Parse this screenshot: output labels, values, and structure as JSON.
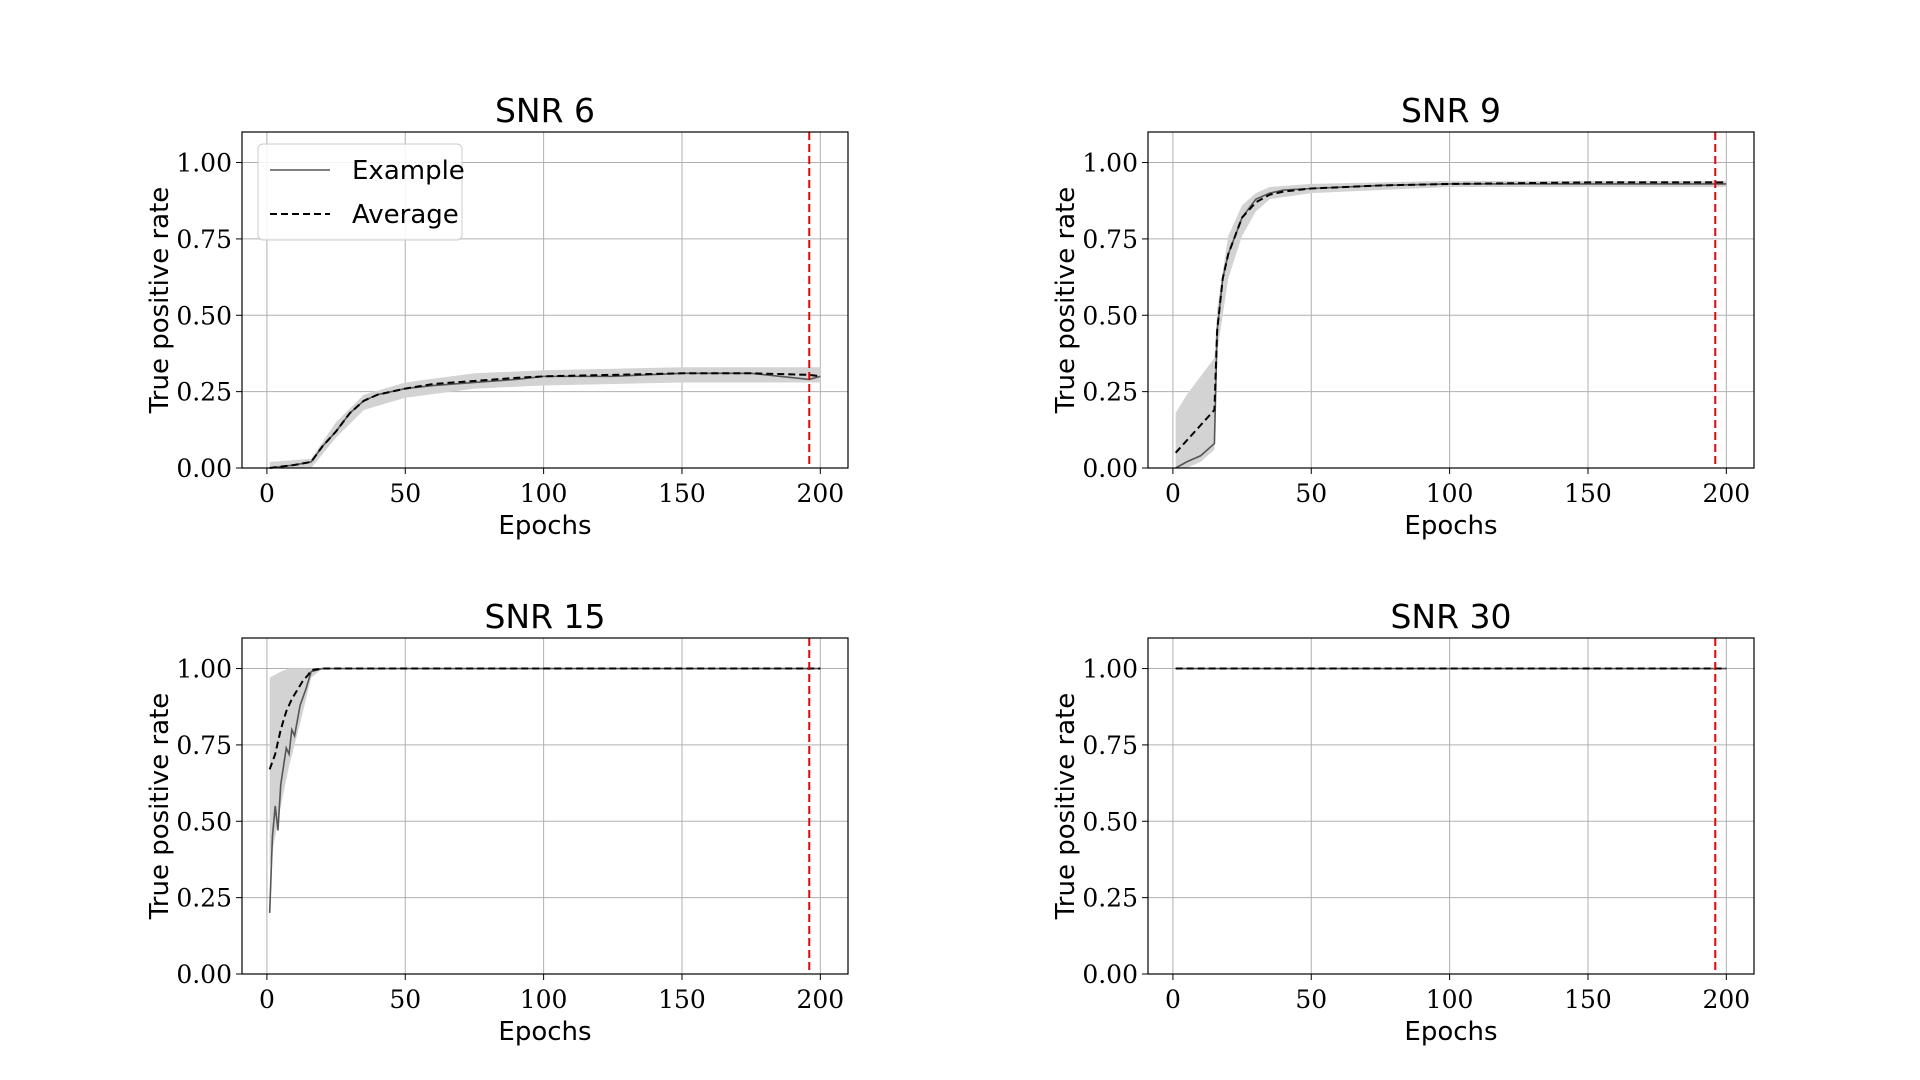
{
  "figure": {
    "legend": {
      "example_label": "Example",
      "average_label": "Average",
      "placement": "upper-left (first panel only)"
    }
  },
  "chart_data": [
    {
      "type": "line",
      "title": "SNR 6",
      "xlabel": "Epochs",
      "ylabel": "True positive rate",
      "xlim": [
        -9,
        210
      ],
      "ylim": [
        0.0,
        1.1
      ],
      "xticks": [
        0,
        50,
        100,
        150,
        200
      ],
      "xtick_labels": [
        "0",
        "50",
        "100",
        "150",
        "200"
      ],
      "yticks": [
        0.0,
        0.25,
        0.5,
        0.75,
        1.0
      ],
      "ytick_labels": [
        "0.00",
        "0.25",
        "0.50",
        "0.75",
        "1.00"
      ],
      "grid": true,
      "vline_x": 196,
      "series": [
        {
          "name": "Example",
          "style": "solid",
          "color": "#555555",
          "x": [
            1,
            10,
            16,
            20,
            25,
            30,
            35,
            40,
            50,
            60,
            75,
            90,
            100,
            125,
            150,
            175,
            196,
            200
          ],
          "y": [
            0.0,
            0.01,
            0.02,
            0.07,
            0.12,
            0.18,
            0.22,
            0.24,
            0.26,
            0.27,
            0.28,
            0.29,
            0.3,
            0.3,
            0.31,
            0.31,
            0.29,
            0.3
          ]
        },
        {
          "name": "Average",
          "style": "dashed",
          "color": "#000000",
          "x": [
            1,
            10,
            16,
            20,
            25,
            30,
            35,
            40,
            50,
            60,
            75,
            90,
            100,
            125,
            150,
            175,
            196,
            200
          ],
          "y": [
            0.0,
            0.01,
            0.02,
            0.07,
            0.12,
            0.18,
            0.22,
            0.24,
            0.26,
            0.275,
            0.285,
            0.295,
            0.3,
            0.305,
            0.31,
            0.31,
            0.305,
            0.3
          ]
        }
      ],
      "band": {
        "color": "#d3d3d3",
        "x": [
          1,
          16,
          25,
          35,
          50,
          75,
          100,
          150,
          200
        ],
        "ylow": [
          0.0,
          0.0,
          0.1,
          0.19,
          0.23,
          0.26,
          0.27,
          0.28,
          0.28
        ],
        "yhigh": [
          0.02,
          0.03,
          0.15,
          0.24,
          0.28,
          0.31,
          0.32,
          0.33,
          0.33
        ]
      },
      "legend": true
    },
    {
      "type": "line",
      "title": "SNR 9",
      "xlabel": "Epochs",
      "ylabel": "True positive rate",
      "xlim": [
        -9,
        210
      ],
      "ylim": [
        0.0,
        1.1
      ],
      "xticks": [
        0,
        50,
        100,
        150,
        200
      ],
      "xtick_labels": [
        "0",
        "50",
        "100",
        "150",
        "200"
      ],
      "yticks": [
        0.0,
        0.25,
        0.5,
        0.75,
        1.0
      ],
      "ytick_labels": [
        "0.00",
        "0.25",
        "0.50",
        "0.75",
        "1.00"
      ],
      "grid": true,
      "vline_x": 196,
      "series": [
        {
          "name": "Example",
          "style": "solid",
          "color": "#555555",
          "x": [
            1,
            5,
            10,
            15,
            16,
            18,
            20,
            25,
            30,
            35,
            40,
            50,
            75,
            100,
            150,
            200
          ],
          "y": [
            0.0,
            0.02,
            0.04,
            0.08,
            0.45,
            0.62,
            0.7,
            0.82,
            0.88,
            0.9,
            0.91,
            0.915,
            0.925,
            0.93,
            0.93,
            0.93
          ]
        },
        {
          "name": "Average",
          "style": "dashed",
          "color": "#000000",
          "x": [
            1,
            5,
            10,
            15,
            16,
            18,
            20,
            25,
            30,
            35,
            40,
            50,
            75,
            100,
            150,
            200
          ],
          "y": [
            0.05,
            0.09,
            0.14,
            0.19,
            0.45,
            0.62,
            0.7,
            0.82,
            0.87,
            0.895,
            0.905,
            0.915,
            0.925,
            0.93,
            0.935,
            0.935
          ]
        }
      ],
      "band": {
        "color": "#d3d3d3",
        "x": [
          1,
          5,
          10,
          15,
          16,
          20,
          25,
          30,
          35,
          50,
          100,
          200
        ],
        "ylow": [
          0.0,
          0.0,
          0.02,
          0.06,
          0.38,
          0.62,
          0.76,
          0.84,
          0.88,
          0.9,
          0.92,
          0.92
        ],
        "yhigh": [
          0.18,
          0.24,
          0.3,
          0.36,
          0.52,
          0.76,
          0.86,
          0.9,
          0.92,
          0.93,
          0.94,
          0.94
        ]
      },
      "legend": false
    },
    {
      "type": "line",
      "title": "SNR 15",
      "xlabel": "Epochs",
      "ylabel": "True positive rate",
      "xlim": [
        -9,
        210
      ],
      "ylim": [
        0.0,
        1.1
      ],
      "xticks": [
        0,
        50,
        100,
        150,
        200
      ],
      "xtick_labels": [
        "0",
        "50",
        "100",
        "150",
        "200"
      ],
      "yticks": [
        0.0,
        0.25,
        0.5,
        0.75,
        1.0
      ],
      "ytick_labels": [
        "0.00",
        "0.25",
        "0.50",
        "0.75",
        "1.00"
      ],
      "grid": true,
      "vline_x": 196,
      "series": [
        {
          "name": "Example",
          "style": "solid",
          "color": "#555555",
          "x": [
            1,
            2,
            3,
            4,
            5,
            6,
            7,
            8,
            9,
            10,
            12,
            14,
            16,
            20,
            50,
            100,
            150,
            200
          ],
          "y": [
            0.2,
            0.45,
            0.55,
            0.47,
            0.62,
            0.68,
            0.74,
            0.72,
            0.8,
            0.78,
            0.88,
            0.93,
            0.99,
            1.0,
            1.0,
            1.0,
            1.0,
            1.0
          ]
        },
        {
          "name": "Average",
          "style": "dashed",
          "color": "#000000",
          "x": [
            1,
            3,
            5,
            7,
            9,
            11,
            13,
            15,
            16,
            20,
            50,
            100,
            150,
            200
          ],
          "y": [
            0.67,
            0.72,
            0.8,
            0.86,
            0.9,
            0.93,
            0.96,
            0.98,
            0.995,
            1.0,
            1.0,
            1.0,
            1.0,
            1.0
          ]
        }
      ],
      "band": {
        "color": "#d3d3d3",
        "x": [
          1,
          3,
          5,
          8,
          12,
          16,
          20,
          200
        ],
        "ylow": [
          0.35,
          0.45,
          0.55,
          0.68,
          0.82,
          0.97,
          1.0,
          1.0
        ],
        "yhigh": [
          0.97,
          0.98,
          0.99,
          1.0,
          1.0,
          1.0,
          1.0,
          1.0
        ]
      },
      "legend": false
    },
    {
      "type": "line",
      "title": "SNR 30",
      "xlabel": "Epochs",
      "ylabel": "True positive rate",
      "xlim": [
        -9,
        210
      ],
      "ylim": [
        0.0,
        1.1
      ],
      "xticks": [
        0,
        50,
        100,
        150,
        200
      ],
      "xtick_labels": [
        "0",
        "50",
        "100",
        "150",
        "200"
      ],
      "yticks": [
        0.0,
        0.25,
        0.5,
        0.75,
        1.0
      ],
      "ytick_labels": [
        "0.00",
        "0.25",
        "0.50",
        "0.75",
        "1.00"
      ],
      "grid": true,
      "vline_x": 196,
      "series": [
        {
          "name": "Example",
          "style": "solid",
          "color": "#555555",
          "x": [
            1,
            200
          ],
          "y": [
            1.0,
            1.0
          ]
        },
        {
          "name": "Average",
          "style": "dashed",
          "color": "#000000",
          "x": [
            1,
            200
          ],
          "y": [
            1.0,
            1.0
          ]
        }
      ],
      "legend": false
    }
  ]
}
